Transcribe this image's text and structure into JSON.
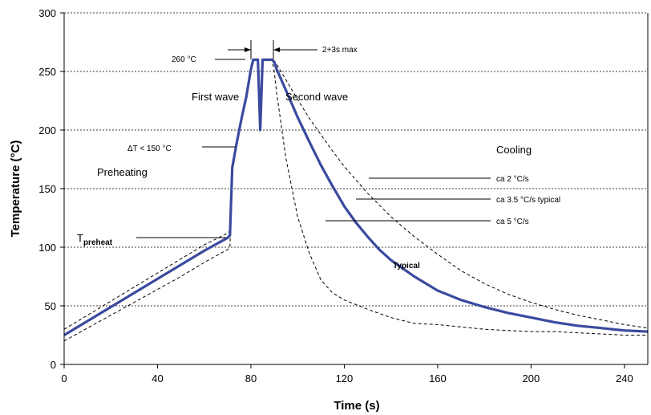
{
  "chart_data": {
    "type": "line",
    "title": "",
    "xlabel": "Time (s)",
    "ylabel": "Temperature (°C)",
    "xlim": [
      0,
      250
    ],
    "ylim": [
      0,
      300
    ],
    "x_ticks": [
      0,
      40,
      80,
      120,
      160,
      200,
      240
    ],
    "y_ticks": [
      0,
      50,
      100,
      150,
      200,
      250,
      300
    ],
    "grid": "horizontal dotted",
    "colors": {
      "typical": "#3a4a9e",
      "limits": "#000000",
      "grid": "#000000"
    },
    "series": [
      {
        "name": "Typical",
        "style": "thick solid",
        "x": [
          0,
          10,
          20,
          30,
          40,
          50,
          60,
          70,
          71,
          72,
          74,
          76,
          78,
          80,
          81,
          82,
          83,
          84,
          85,
          86,
          87,
          88,
          89,
          90,
          91,
          95,
          100,
          105,
          110,
          115,
          120,
          125,
          130,
          135,
          140,
          150,
          160,
          170,
          180,
          190,
          200,
          210,
          220,
          230,
          240,
          250
        ],
        "y": [
          25,
          37,
          49,
          61,
          73,
          85,
          97,
          108,
          110,
          168,
          190,
          210,
          228,
          252,
          260,
          260,
          260,
          200,
          260,
          260,
          260,
          260,
          260,
          258,
          252,
          234,
          211,
          190,
          170,
          152,
          135,
          121,
          109,
          98,
          89,
          75,
          63,
          55,
          49,
          44,
          40,
          36,
          33,
          31,
          29,
          28
        ]
      },
      {
        "name": "",
        "style": "dashed",
        "x": [
          0,
          10,
          20,
          30,
          40,
          50,
          60,
          70,
          71,
          72,
          74,
          76,
          78,
          80,
          81,
          82,
          83,
          84,
          85,
          86,
          87,
          88,
          89,
          90,
          91,
          95,
          100,
          105,
          110,
          115,
          120,
          125,
          130,
          140,
          150,
          160,
          170,
          180,
          190,
          200,
          210,
          220,
          230,
          240,
          250
        ],
        "y": [
          20,
          31,
          42,
          53,
          64,
          75,
          87,
          98,
          100,
          168,
          190,
          210,
          228,
          252,
          260,
          260,
          260,
          200,
          260,
          260,
          260,
          260,
          260,
          250,
          232,
          176,
          126,
          95,
          72,
          61,
          55,
          51,
          47,
          40,
          35,
          34,
          32,
          30,
          29,
          28,
          28,
          27,
          26,
          25,
          25
        ]
      },
      {
        "name": "",
        "style": "dashed",
        "x": [
          0,
          10,
          20,
          30,
          40,
          50,
          60,
          70,
          71,
          72,
          74,
          76,
          78,
          80,
          81,
          82,
          83,
          84,
          85,
          86,
          87,
          88,
          89,
          90,
          91,
          95,
          100,
          105,
          110,
          115,
          120,
          130,
          140,
          150,
          160,
          170,
          180,
          190,
          200,
          210,
          220,
          230,
          240,
          250
        ],
        "y": [
          30,
          42,
          54,
          66,
          78,
          90,
          102,
          112,
          114,
          168,
          190,
          210,
          228,
          252,
          260,
          260,
          260,
          200,
          260,
          260,
          260,
          260,
          260,
          259,
          256,
          243,
          226,
          210,
          196,
          182,
          169,
          146,
          126,
          109,
          94,
          80,
          69,
          60,
          53,
          47,
          42,
          38,
          34,
          31
        ]
      }
    ],
    "annotations": {
      "preheating": "Preheating",
      "first_wave": "First wave",
      "second_wave": "Second wave",
      "cooling": "Cooling",
      "t_preheat_main": "T",
      "t_preheat_sub": "preheat",
      "delta_t": "ΔT < 150  °C",
      "peak_temp": "260 °C",
      "time_max": "2+3s max",
      "rate_2": "ca 2 °C/s",
      "rate_3_5": "ca 3.5 °C/s typical",
      "rate_5": "ca 5 °C/s",
      "typical": "Typical"
    }
  }
}
